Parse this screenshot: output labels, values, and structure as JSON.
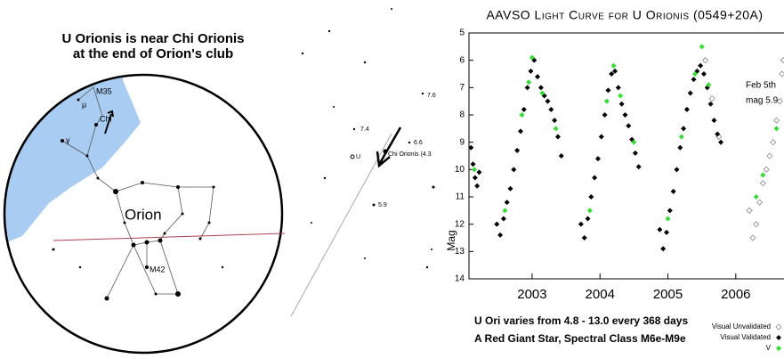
{
  "finder": {
    "title": [
      "U Orionis is near Chi Orionis",
      "at the end of Orion's club"
    ],
    "labels": [
      "M35",
      "Chi",
      "Orion",
      "M42",
      "γ",
      "μ"
    ],
    "field_labels": [
      "Chi Orionis (4.3",
      "U",
      "7.4",
      "7.6",
      "6.6",
      "5.9"
    ]
  },
  "chart_data": {
    "type": "scatter",
    "title": "AAVSO Light Curve for U Orionis (0549+20A)",
    "y_label": "Mag",
    "annotations": [
      "Feb 5th",
      "mag 5.9"
    ],
    "notes": [
      "U Ori varies from 4.8 - 13.0 every 368 days",
      "A Red Giant Star,  Spectral Class M6e-M9e"
    ],
    "xlim": [
      2002.07,
      2006.71
    ],
    "xticks": [
      2003,
      2004,
      2005,
      2006
    ],
    "ylim": [
      14,
      5
    ],
    "yticks": [
      5,
      6,
      7,
      8,
      9,
      10,
      11,
      12,
      13,
      14
    ],
    "legend": "bottom-right",
    "series": [
      {
        "name": "Visual Unvalidated",
        "color": "#888888",
        "marker": "open-diamond",
        "x": [
          2005.55,
          2005.65,
          2005.75,
          2006.2,
          2006.25,
          2006.3,
          2006.35,
          2006.4,
          2006.45,
          2006.5,
          2006.55,
          2006.6,
          2006.65,
          2006.68,
          2006.7
        ],
        "values": [
          6.0,
          7.4,
          8.8,
          11.5,
          12.5,
          12.0,
          11.2,
          10.5,
          10.0,
          9.5,
          9.0,
          8.2,
          7.5,
          6.5,
          6.0
        ]
      },
      {
        "name": "Visual Validated",
        "color": "#000000",
        "marker": "diamond",
        "x": [
          2002.1,
          2002.13,
          2002.16,
          2002.19,
          2002.22,
          2002.48,
          2002.53,
          2002.58,
          2002.63,
          2002.68,
          2002.73,
          2002.78,
          2002.83,
          2002.88,
          2002.93,
          2002.98,
          2003.03,
          2003.08,
          2003.13,
          2003.18,
          2003.23,
          2003.28,
          2003.33,
          2003.38,
          2003.43,
          2003.72,
          2003.77,
          2003.82,
          2003.87,
          2003.92,
          2003.97,
          2004.02,
          2004.07,
          2004.12,
          2004.17,
          2004.22,
          2004.27,
          2004.32,
          2004.37,
          2004.42,
          2004.47,
          2004.52,
          2004.57,
          2004.88,
          2004.93,
          2004.98,
          2005.03,
          2005.08,
          2005.13,
          2005.18,
          2005.23,
          2005.28,
          2005.33,
          2005.38,
          2005.43,
          2005.48,
          2005.53,
          2005.58,
          2005.63,
          2005.68,
          2005.73,
          2005.78
        ],
        "values": [
          9.2,
          9.8,
          10.3,
          10.6,
          10.1,
          12.0,
          12.4,
          11.8,
          11.2,
          10.7,
          10.0,
          9.3,
          8.6,
          7.8,
          7.0,
          6.4,
          6.0,
          6.6,
          7.0,
          7.3,
          7.5,
          7.8,
          8.2,
          8.8,
          9.5,
          12.0,
          12.5,
          11.8,
          11.0,
          10.3,
          9.6,
          8.8,
          8.0,
          7.1,
          6.5,
          6.4,
          7.0,
          7.6,
          8.0,
          8.4,
          8.9,
          9.4,
          9.9,
          12.2,
          12.9,
          12.3,
          11.5,
          10.8,
          10.0,
          9.2,
          8.5,
          7.8,
          7.2,
          6.7,
          6.4,
          6.2,
          6.5,
          7.0,
          7.6,
          8.2,
          8.7,
          9.0
        ]
      },
      {
        "name": "V",
        "color": "#33dd33",
        "marker": "diamond",
        "x": [
          2002.15,
          2002.6,
          2002.85,
          2002.95,
          2003.0,
          2003.15,
          2003.35,
          2003.85,
          2004.1,
          2004.2,
          2004.3,
          2004.5,
          2005.0,
          2005.2,
          2005.4,
          2005.5,
          2005.6,
          2006.3,
          2006.4,
          2006.6
        ],
        "values": [
          10.0,
          11.5,
          8.0,
          6.8,
          5.9,
          7.2,
          8.5,
          11.5,
          7.5,
          6.2,
          7.3,
          9.0,
          11.8,
          8.8,
          6.5,
          5.5,
          6.9,
          11.0,
          10.2,
          8.5
        ]
      }
    ]
  }
}
